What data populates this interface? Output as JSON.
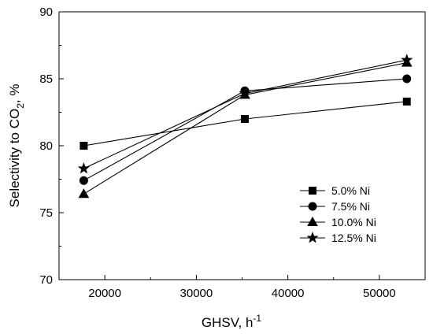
{
  "chart_data": {
    "type": "line",
    "title": "",
    "xlabel": "GHSV, h",
    "xlabel_sup": "-1",
    "ylabel_pre": "Selectivity to CO",
    "ylabel_sub": "2",
    "ylabel_post": ", %",
    "xlim": [
      15000,
      55000
    ],
    "ylim": [
      70,
      90
    ],
    "xticks": [
      20000,
      30000,
      40000,
      50000
    ],
    "yticks": [
      70,
      75,
      80,
      85,
      90
    ],
    "grid": false,
    "legend_position": "bottom-right",
    "x": [
      17700,
      35300,
      53000
    ],
    "series": [
      {
        "name": "5.0% Ni",
        "marker": "square",
        "values": [
          80.0,
          82.0,
          83.3
        ]
      },
      {
        "name": "7.5% Ni",
        "marker": "circle",
        "values": [
          77.4,
          84.1,
          85.0
        ]
      },
      {
        "name": "10.0% Ni",
        "marker": "triangle",
        "values": [
          76.4,
          83.8,
          86.2
        ]
      },
      {
        "name": "12.5% Ni",
        "marker": "star",
        "values": [
          78.3,
          83.9,
          86.4
        ]
      }
    ],
    "colors": {
      "line": "#000000",
      "marker": "#000000"
    }
  }
}
